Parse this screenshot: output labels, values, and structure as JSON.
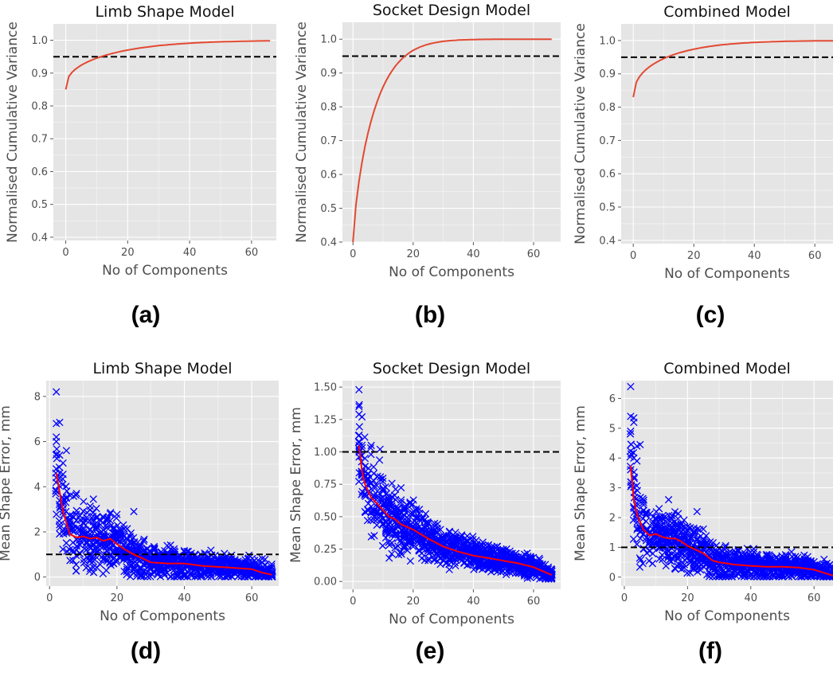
{
  "chart_data": [
    {
      "panel": "(a)",
      "type": "line",
      "title": "Limb Shape Model",
      "xlabel": "No of Components",
      "ylabel": "Normalised Cumulative Variance",
      "xlim": [
        -4,
        68
      ],
      "ylim": [
        0.39,
        1.05
      ],
      "xticks": [
        0,
        20,
        40,
        60
      ],
      "xtick_labels": [
        "0",
        "20",
        "40",
        "60"
      ],
      "yticks": [
        0.4,
        0.5,
        0.6,
        0.7,
        0.8,
        0.9,
        1.0
      ],
      "ytick_labels": [
        "0.4",
        "0.5",
        "0.6",
        "0.7",
        "0.8",
        "0.9",
        "1.0"
      ],
      "grid": true,
      "line_color": "#e24a33",
      "threshold": {
        "y": 0.95,
        "style": "dashed",
        "color": "#000000"
      },
      "series": [
        {
          "curve": {
            "y0": 0.85,
            "k": 0.3,
            "p": 0.45
          },
          "points": 66
        }
      ]
    },
    {
      "panel": "(b)",
      "type": "line",
      "title": "Socket Design Model",
      "xlabel": "No of Components",
      "ylabel": "Normalised Cumulative Variance",
      "xlim": [
        -3.5,
        69
      ],
      "ylim": [
        0.4,
        1.05
      ],
      "xticks": [
        0,
        20,
        40,
        60
      ],
      "xtick_labels": [
        "0",
        "20",
        "40",
        "60"
      ],
      "yticks": [
        0.4,
        0.5,
        0.6,
        0.7,
        0.8,
        0.9,
        1.0
      ],
      "ytick_labels": [
        "0.4",
        "0.5",
        "0.6",
        "0.7",
        "0.8",
        "0.9",
        "1.0"
      ],
      "grid": true,
      "line_color": "#e24a33",
      "threshold": {
        "y": 0.95,
        "style": "dashed",
        "color": "#000000"
      },
      "series": [
        {
          "curve": {
            "y0": 0.4,
            "k": 0.2,
            "p": 0.78
          },
          "points": 66
        }
      ]
    },
    {
      "panel": "(c)",
      "type": "line",
      "title": "Combined Model",
      "xlabel": "No of Components",
      "ylabel": "Normalised Cumulative Variance",
      "xlim": [
        -4,
        66
      ],
      "ylim": [
        0.39,
        1.05
      ],
      "xticks": [
        0,
        20,
        40,
        60
      ],
      "xtick_labels": [
        "0",
        "20",
        "40",
        "60"
      ],
      "yticks": [
        0.4,
        0.5,
        0.6,
        0.7,
        0.8,
        0.9,
        1.0
      ],
      "ytick_labels": [
        "0.4",
        "0.5",
        "0.6",
        "0.7",
        "0.8",
        "0.9",
        "1.0"
      ],
      "grid": true,
      "line_color": "#e24a33",
      "threshold": {
        "y": 0.95,
        "style": "dashed",
        "color": "#000000"
      },
      "series": [
        {
          "curve": {
            "y0": 0.83,
            "k": 0.3,
            "p": 0.5
          },
          "points": 66
        }
      ]
    },
    {
      "panel": "(d)",
      "type": "scatter",
      "title": "Limb Shape Model",
      "xlabel": "No of Components",
      "ylabel": "Mean Shape Error, mm",
      "xlim": [
        -1,
        68
      ],
      "ylim": [
        -0.4,
        8.7
      ],
      "xticks": [
        0,
        20,
        40,
        60
      ],
      "xtick_labels": [
        "0",
        "20",
        "40",
        "60"
      ],
      "yticks": [
        0,
        2,
        4,
        6,
        8
      ],
      "ytick_labels": [
        "0",
        "2",
        "4",
        "6",
        "8"
      ],
      "grid": true,
      "marker": "x",
      "marker_color": "#0000ff",
      "line_color": "#ff0000",
      "threshold": {
        "y": 1.0,
        "style": "dashed",
        "color": "#000000"
      },
      "mean_line": {
        "x": [
          2,
          4,
          6,
          8,
          10,
          12,
          14,
          16,
          18,
          20,
          22,
          25,
          28,
          30,
          35,
          40,
          45,
          50,
          55,
          60,
          63,
          66
        ],
        "y": [
          4.6,
          2.9,
          1.9,
          1.75,
          1.8,
          1.7,
          1.75,
          1.6,
          1.7,
          1.45,
          1.25,
          1.0,
          0.8,
          0.65,
          0.6,
          0.6,
          0.5,
          0.45,
          0.4,
          0.35,
          0.2,
          0.1
        ]
      },
      "spread": [
        1.6,
        1.1,
        0.6,
        0.35
      ],
      "spread_knots": [
        2,
        10,
        30,
        66
      ],
      "outliers": [
        [
          2,
          8.2
        ],
        [
          2,
          6.8
        ],
        [
          3,
          6.85
        ],
        [
          2,
          6.2
        ],
        [
          2,
          6.0
        ],
        [
          3,
          5.4
        ],
        [
          4,
          5.05
        ],
        [
          5,
          5.6
        ],
        [
          4,
          4.55
        ],
        [
          8,
          3.7
        ],
        [
          13,
          3.45
        ],
        [
          25,
          2.9
        ],
        [
          18,
          2.5
        ]
      ]
    },
    {
      "panel": "(e)",
      "type": "scatter",
      "title": "Socket Design Model",
      "xlabel": "No of Components",
      "ylabel": "Mean Shape Error, mm",
      "xlim": [
        -3.5,
        69
      ],
      "ylim": [
        -0.06,
        1.55
      ],
      "xticks": [
        0,
        20,
        40,
        60
      ],
      "xtick_labels": [
        "0",
        "20",
        "40",
        "60"
      ],
      "yticks": [
        0,
        0.25,
        0.5,
        0.75,
        1.0,
        1.25,
        1.5
      ],
      "ytick_labels": [
        "0.00",
        "0.25",
        "0.50",
        "0.75",
        "1.00",
        "1.25",
        "1.50"
      ],
      "grid": true,
      "marker": "x",
      "marker_color": "#0000ff",
      "line_color": "#ff0000",
      "threshold": {
        "y": 1.0,
        "style": "dashed",
        "color": "#000000"
      },
      "mean_line": {
        "x": [
          2,
          3,
          4,
          6,
          8,
          10,
          12,
          14,
          16,
          18,
          20,
          25,
          30,
          35,
          40,
          45,
          50,
          55,
          60,
          63,
          66
        ],
        "y": [
          1.05,
          0.85,
          0.75,
          0.65,
          0.6,
          0.55,
          0.5,
          0.48,
          0.44,
          0.42,
          0.4,
          0.33,
          0.27,
          0.23,
          0.2,
          0.18,
          0.16,
          0.14,
          0.11,
          0.08,
          0.05
        ]
      },
      "spread": [
        0.28,
        0.2,
        0.11,
        0.05
      ],
      "spread_knots": [
        2,
        10,
        30,
        66
      ],
      "outliers": [
        [
          2,
          1.48
        ],
        [
          2,
          1.35
        ],
        [
          2,
          1.29
        ],
        [
          3,
          1.27
        ],
        [
          2,
          1.08
        ],
        [
          3,
          1.05
        ],
        [
          9,
          1.02
        ],
        [
          6,
          0.98
        ],
        [
          4,
          0.95
        ]
      ]
    },
    {
      "panel": "(f)",
      "type": "scatter",
      "title": "Combined Model",
      "xlabel": "No of Components",
      "ylabel": "Mean Shape Error, mm",
      "xlim": [
        -1,
        66
      ],
      "ylim": [
        -0.3,
        6.6
      ],
      "xticks": [
        0,
        20,
        40,
        60
      ],
      "xtick_labels": [
        "0",
        "20",
        "40",
        "60"
      ],
      "yticks": [
        0,
        1,
        2,
        3,
        4,
        5,
        6
      ],
      "ytick_labels": [
        "0",
        "1",
        "2",
        "3",
        "4",
        "5",
        "6"
      ],
      "grid": true,
      "marker": "x",
      "marker_color": "#0000ff",
      "line_color": "#ff0000",
      "threshold": {
        "y": 1.0,
        "style": "dashed",
        "color": "#000000"
      },
      "mean_line": {
        "x": [
          2,
          3,
          4,
          6,
          8,
          10,
          12,
          14,
          16,
          18,
          20,
          22,
          25,
          28,
          30,
          35,
          40,
          45,
          50,
          55,
          60,
          63,
          66
        ],
        "y": [
          3.75,
          2.6,
          2.1,
          1.6,
          1.4,
          1.45,
          1.35,
          1.3,
          1.3,
          1.2,
          1.05,
          0.95,
          0.8,
          0.55,
          0.5,
          0.42,
          0.38,
          0.35,
          0.35,
          0.32,
          0.25,
          0.15,
          0.05
        ]
      },
      "spread": [
        1.3,
        0.75,
        0.45,
        0.28
      ],
      "spread_knots": [
        2,
        10,
        30,
        66
      ],
      "outliers": [
        [
          2,
          6.4
        ],
        [
          2,
          5.4
        ],
        [
          3,
          5.35
        ],
        [
          3,
          5.2
        ],
        [
          2,
          4.9
        ],
        [
          4,
          4.4
        ],
        [
          5,
          4.45
        ],
        [
          3,
          4.0
        ],
        [
          4,
          3.9
        ],
        [
          14,
          2.6
        ],
        [
          23,
          2.2
        ],
        [
          11,
          2.3
        ]
      ]
    }
  ]
}
